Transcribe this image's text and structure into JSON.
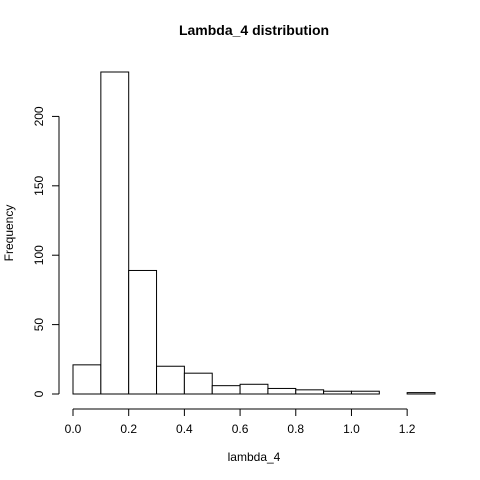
{
  "chart_data": {
    "type": "bar",
    "title": "Lambda_4 distribution",
    "xlabel": "lambda_4",
    "ylabel": "Frequency",
    "bin_edges": [
      0.0,
      0.1,
      0.2,
      0.3,
      0.4,
      0.5,
      0.6,
      0.7,
      0.8,
      0.9,
      1.0,
      1.1,
      1.2,
      1.3
    ],
    "values": [
      21,
      232,
      89,
      20,
      15,
      6,
      7,
      4,
      3,
      2,
      2,
      0,
      1
    ],
    "x_ticks": [
      "0.0",
      "0.2",
      "0.4",
      "0.6",
      "0.8",
      "1.0",
      "1.2"
    ],
    "y_ticks": [
      "0",
      "50",
      "100",
      "150",
      "200"
    ],
    "xlim": [
      0.0,
      1.3
    ],
    "ylim": [
      0,
      232
    ],
    "grid": false,
    "legend": "none",
    "bar_fill": "#ffffff",
    "bar_stroke": "#000000"
  }
}
